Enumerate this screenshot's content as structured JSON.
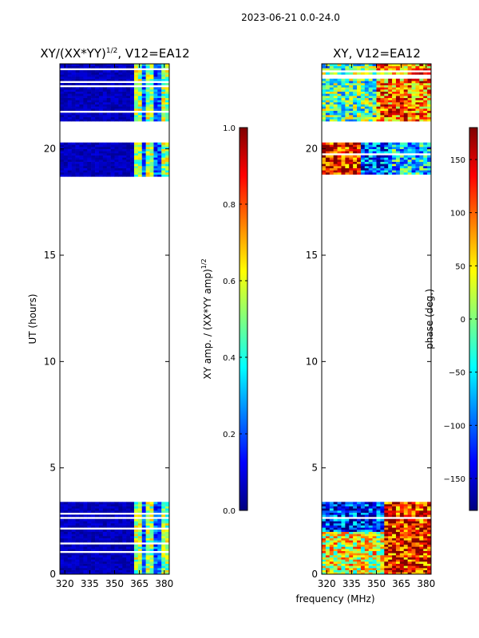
{
  "suptitle": "2023-06-21 0.0-24.0",
  "colors": {
    "jet": [
      "#00007f",
      "#0000ff",
      "#007fff",
      "#00ffff",
      "#7fff7f",
      "#ffff00",
      "#ff7f00",
      "#ff0000",
      "#7f0000"
    ]
  },
  "chart_data": [
    {
      "type": "heatmap",
      "title": "XY/(XX*YY)^1/2, V12=EA12",
      "title_main": "XY/(XX*YY)",
      "title_exp": "1/2",
      "title_rest": ", V12=EA12",
      "xlabel": "",
      "ylabel": "UT (hours)",
      "xlim": [
        317,
        383
      ],
      "ylim": [
        0,
        24
      ],
      "xticks": [
        320,
        335,
        350,
        365,
        380
      ],
      "yticks": [
        0,
        5,
        10,
        15,
        20
      ],
      "channel_bounds": [
        320,
        335,
        350,
        365,
        380
      ],
      "data_bands_hours": [
        [
          0,
          3.4
        ],
        [
          18.7,
          20.3
        ],
        [
          21.3,
          24
        ]
      ],
      "colorbar": {
        "label": "XY amp. / (XX*YY amp)^1/2",
        "label_main": "XY amp. / (XX*YY amp)",
        "label_exp": "1/2",
        "range": [
          0.0,
          1.0
        ],
        "ticks": [
          "0.0",
          "0.2",
          "0.4",
          "0.6",
          "0.8",
          "1.0"
        ],
        "tick_values": [
          0.0,
          0.2,
          0.4,
          0.6,
          0.8,
          1.0
        ]
      }
    },
    {
      "type": "heatmap",
      "title": "XY, V12=EA12",
      "xlabel": "frequency (MHz)",
      "ylabel": "",
      "xlim": [
        317,
        383
      ],
      "ylim": [
        0,
        24
      ],
      "xticks": [
        320,
        335,
        350,
        365,
        380
      ],
      "yticks": [
        0,
        5,
        10,
        15,
        20
      ],
      "data_bands_hours": [
        [
          0,
          3.4
        ],
        [
          18.7,
          20.3
        ],
        [
          21.3,
          24
        ]
      ],
      "colorbar": {
        "label": "phase (deg.)",
        "range": [
          -180,
          180
        ],
        "ticks": [
          "150",
          "100",
          "50",
          "0",
          "−50",
          "−100",
          "−150"
        ],
        "tick_values": [
          150,
          100,
          50,
          0,
          -50,
          -100,
          -150
        ]
      }
    }
  ]
}
